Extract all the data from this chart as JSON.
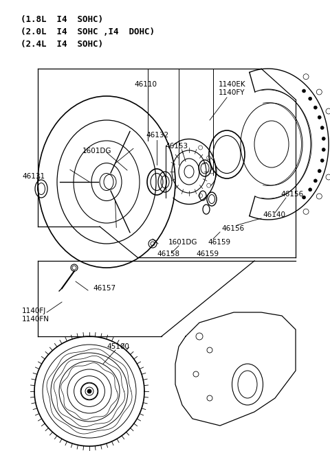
{
  "background_color": "#ffffff",
  "line_color": "#000000",
  "text_color": "#000000",
  "header_lines": [
    "(1.8L  I4  SOHC)",
    "(2.0L  I4  SOHC ,I4  DOHC)",
    "(2.4L  I4  SOHC)"
  ],
  "fig_width": 4.8,
  "fig_height": 6.57,
  "dpi": 100
}
